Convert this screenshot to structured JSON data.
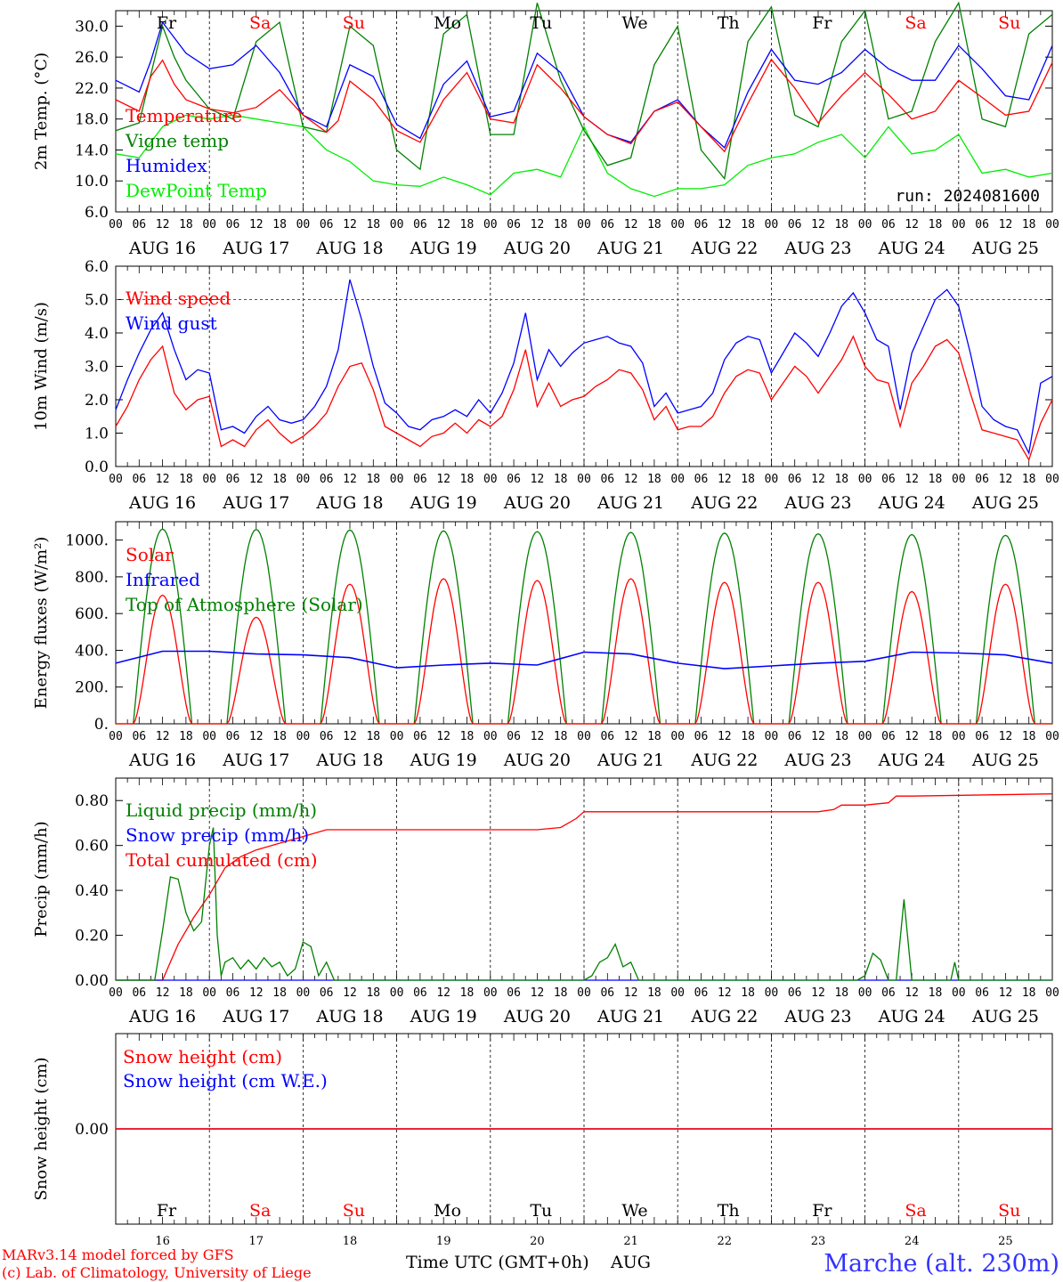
{
  "footer": {
    "model": "MARv3.14 model forced by GFS",
    "copyright": "(c) Lab. of Climatology, University of Liege",
    "xlabel": "Time UTC (GMT+0h)",
    "month": "AUG",
    "station": "Marche (alt. 230m)"
  },
  "run_label": "run: 2024081600",
  "colors": {
    "temperature": "#ff0000",
    "vigne": "#008000",
    "humidex": "#0000ff",
    "dewpoint": "#00ee00",
    "weekend": "#ff0000",
    "weekday": "#000000",
    "station": "#3333ff",
    "snow_we": "#7030a0"
  },
  "time_axis": {
    "hour_ticks": [
      "00",
      "06",
      "12",
      "18"
    ],
    "date_labels": [
      "AUG 16",
      "AUG 17",
      "AUG 18",
      "AUG 19",
      "AUG 20",
      "AUG 21",
      "AUG 22",
      "AUG 23",
      "AUG 24",
      "AUG 25"
    ],
    "day_abbr": [
      "Fr",
      "Sa",
      "Su",
      "Mo",
      "Tu",
      "We",
      "Th",
      "Fr",
      "Sa",
      "Su"
    ],
    "weekend": [
      false,
      true,
      true,
      false,
      false,
      false,
      false,
      false,
      true,
      true
    ],
    "day_numbers": [
      "16",
      "17",
      "18",
      "19",
      "20",
      "21",
      "22",
      "23",
      "24",
      "25"
    ]
  },
  "chart_data": [
    {
      "type": "line",
      "ylabel": "2m Temp. (°C)",
      "ylim": [
        6,
        32
      ],
      "yticks": [
        "6.0",
        "10.0",
        "14.0",
        "18.0",
        "22.0",
        "26.0",
        "30.0"
      ],
      "x_unit": "hours since AUG 16 00 UTC",
      "series": [
        {
          "name": "Temperature",
          "color": "#ff0000",
          "x": [
            0,
            6,
            9,
            12,
            15,
            18,
            24,
            30,
            36,
            42,
            48,
            54,
            57,
            60,
            66,
            72,
            78,
            84,
            90,
            96,
            102,
            108,
            114,
            120,
            126,
            132,
            138,
            144,
            150,
            156,
            162,
            168,
            174,
            180,
            186,
            192,
            198,
            204,
            210,
            216,
            222,
            228,
            234,
            240
          ],
          "y": [
            20.5,
            19.0,
            23.5,
            25.6,
            22.5,
            20.5,
            19.3,
            18.8,
            19.5,
            21.8,
            18.5,
            16.3,
            17.8,
            22.9,
            20.5,
            16.5,
            15.0,
            20.5,
            24.0,
            18.0,
            17.5,
            25.0,
            22.0,
            18.3,
            16.0,
            14.8,
            19.0,
            20.2,
            17.0,
            13.8,
            20.0,
            25.7,
            22.0,
            17.5,
            21.0,
            24.0,
            21.2,
            18.0,
            19.0,
            23.0,
            20.8,
            18.5,
            19.0,
            25.3
          ]
        },
        {
          "name": "Vigne temp",
          "color": "#008000",
          "x": [
            0,
            6,
            12,
            15,
            18,
            24,
            30,
            36,
            42,
            48,
            54,
            60,
            66,
            72,
            78,
            84,
            90,
            96,
            102,
            108,
            114,
            120,
            126,
            132,
            138,
            144,
            150,
            156,
            162,
            168,
            174,
            180,
            186,
            192,
            198,
            204,
            210,
            216,
            222,
            228,
            234,
            240
          ],
          "y": [
            16.5,
            17.5,
            30.0,
            26.0,
            23.0,
            19.3,
            18.0,
            28.0,
            30.5,
            17.0,
            16.3,
            30.0,
            27.5,
            14.0,
            11.5,
            29.0,
            31.5,
            16.0,
            16.0,
            33.0,
            23.0,
            16.5,
            12.0,
            13.0,
            25.0,
            30.0,
            14.0,
            10.3,
            28.0,
            32.5,
            18.5,
            17.0,
            28.0,
            32.0,
            18.0,
            19.0,
            28.0,
            33.0,
            18.0,
            17.0,
            29.0,
            31.5
          ]
        },
        {
          "name": "Humidex",
          "color": "#0000ff",
          "x": [
            0,
            6,
            9,
            12,
            18,
            24,
            30,
            36,
            42,
            48,
            54,
            60,
            66,
            72,
            78,
            84,
            90,
            96,
            102,
            108,
            114,
            120,
            126,
            132,
            138,
            144,
            150,
            156,
            162,
            168,
            174,
            180,
            186,
            192,
            198,
            204,
            210,
            216,
            222,
            228,
            234,
            240
          ],
          "y": [
            23.0,
            21.5,
            25.5,
            30.5,
            26.5,
            24.5,
            25.0,
            27.5,
            24.0,
            18.5,
            17.0,
            25.0,
            23.5,
            17.3,
            15.5,
            22.5,
            25.5,
            18.3,
            19.0,
            26.5,
            24.0,
            18.3,
            16.0,
            15.0,
            19.0,
            20.5,
            17.0,
            14.3,
            21.5,
            27.0,
            23.0,
            22.5,
            24.0,
            27.0,
            24.5,
            23.0,
            23.0,
            27.5,
            24.5,
            21.0,
            20.5,
            27.5
          ]
        },
        {
          "name": "DewPoint Temp",
          "color": "#00ee00",
          "x": [
            0,
            6,
            12,
            18,
            24,
            30,
            36,
            42,
            48,
            54,
            60,
            66,
            72,
            78,
            84,
            90,
            96,
            102,
            108,
            114,
            120,
            126,
            132,
            138,
            144,
            150,
            156,
            162,
            168,
            174,
            180,
            186,
            192,
            198,
            204,
            210,
            216,
            222,
            228,
            234,
            240
          ],
          "y": [
            13.5,
            13.0,
            17.0,
            18.5,
            18.0,
            18.5,
            18.0,
            17.5,
            17.0,
            14.0,
            12.5,
            10.0,
            9.5,
            9.3,
            10.5,
            9.5,
            8.2,
            11.0,
            11.5,
            10.5,
            17.0,
            11.0,
            9.0,
            8.0,
            9.0,
            9.0,
            9.5,
            12.0,
            13.0,
            13.5,
            15.0,
            16.0,
            13.0,
            17.0,
            13.5,
            14.0,
            16.0,
            11.0,
            11.5,
            10.5,
            11.0
          ]
        }
      ],
      "reference_line": 0
    },
    {
      "type": "line",
      "ylabel": "10m Wind (m/s)",
      "ylim": [
        0,
        6
      ],
      "yticks": [
        "0.0",
        "1.0",
        "2.0",
        "3.0",
        "4.0",
        "5.0",
        "6.0"
      ],
      "x_unit": "hours since AUG 16 00 UTC",
      "series": [
        {
          "name": "Wind speed",
          "color": "#ff0000",
          "x": [
            0,
            3,
            6,
            9,
            12,
            15,
            18,
            21,
            24,
            27,
            30,
            33,
            36,
            39,
            42,
            45,
            48,
            51,
            54,
            57,
            60,
            63,
            66,
            69,
            72,
            75,
            78,
            81,
            84,
            87,
            90,
            93,
            96,
            99,
            102,
            105,
            108,
            111,
            114,
            117,
            120,
            123,
            126,
            129,
            132,
            135,
            138,
            141,
            144,
            147,
            150,
            153,
            156,
            159,
            162,
            165,
            168,
            171,
            174,
            177,
            180,
            183,
            186,
            189,
            192,
            195,
            198,
            201,
            204,
            207,
            210,
            213,
            216,
            219,
            222,
            225,
            228,
            231,
            234,
            237,
            240
          ],
          "y": [
            1.2,
            1.8,
            2.6,
            3.2,
            3.6,
            2.2,
            1.7,
            2.0,
            2.1,
            0.6,
            0.8,
            0.6,
            1.1,
            1.4,
            1.0,
            0.7,
            0.9,
            1.2,
            1.6,
            2.4,
            3.0,
            3.1,
            2.3,
            1.2,
            1.0,
            0.8,
            0.6,
            0.9,
            1.0,
            1.3,
            1.0,
            1.4,
            1.2,
            1.5,
            2.3,
            3.5,
            1.8,
            2.5,
            1.8,
            2.0,
            2.1,
            2.4,
            2.6,
            2.9,
            2.8,
            2.3,
            1.4,
            1.8,
            1.1,
            1.2,
            1.2,
            1.5,
            2.2,
            2.7,
            2.9,
            2.8,
            2.0,
            2.5,
            3.0,
            2.7,
            2.2,
            2.7,
            3.2,
            3.9,
            3.0,
            2.6,
            2.5,
            1.2,
            2.5,
            3.0,
            3.6,
            3.8,
            3.4,
            2.2,
            1.1,
            1.0,
            0.9,
            0.8,
            0.2,
            1.3,
            2.0
          ]
        },
        {
          "name": "Wind gust",
          "color": "#0000ff",
          "x": [
            0,
            3,
            6,
            9,
            12,
            15,
            18,
            21,
            24,
            27,
            30,
            33,
            36,
            39,
            42,
            45,
            48,
            51,
            54,
            57,
            60,
            63,
            66,
            69,
            72,
            75,
            78,
            81,
            84,
            87,
            90,
            93,
            96,
            99,
            102,
            105,
            108,
            111,
            114,
            117,
            120,
            123,
            126,
            129,
            132,
            135,
            138,
            141,
            144,
            147,
            150,
            153,
            156,
            159,
            162,
            165,
            168,
            171,
            174,
            177,
            180,
            183,
            186,
            189,
            192,
            195,
            198,
            201,
            204,
            207,
            210,
            213,
            216,
            219,
            222,
            225,
            228,
            231,
            234,
            237,
            240
          ],
          "y": [
            1.7,
            2.6,
            3.4,
            4.1,
            4.6,
            3.5,
            2.6,
            2.9,
            2.8,
            1.1,
            1.2,
            1.0,
            1.5,
            1.8,
            1.4,
            1.3,
            1.4,
            1.8,
            2.4,
            3.5,
            5.6,
            4.4,
            3.0,
            1.9,
            1.6,
            1.2,
            1.1,
            1.4,
            1.5,
            1.7,
            1.5,
            2.0,
            1.6,
            2.2,
            3.1,
            4.6,
            2.6,
            3.5,
            3.0,
            3.4,
            3.7,
            3.8,
            3.9,
            3.7,
            3.6,
            3.1,
            1.8,
            2.2,
            1.6,
            1.7,
            1.8,
            2.2,
            3.2,
            3.7,
            3.9,
            3.8,
            2.8,
            3.4,
            4.0,
            3.7,
            3.3,
            4.0,
            4.8,
            5.2,
            4.6,
            3.8,
            3.6,
            1.7,
            3.4,
            4.2,
            5.0,
            5.3,
            4.8,
            3.4,
            1.8,
            1.4,
            1.2,
            1.1,
            0.4,
            2.5,
            2.7
          ]
        }
      ],
      "reference_line": 5.0
    },
    {
      "type": "line",
      "ylabel": "Energy fluxes (W/m²)",
      "ylim": [
        0,
        1100
      ],
      "yticks": [
        "0.",
        "200.",
        "400.",
        "600.",
        "800.",
        "1000."
      ],
      "x_unit": "hours since AUG 16 00 UTC",
      "diurnal": {
        "toa_peak": [
          1060,
          1058,
          1055,
          1050,
          1046,
          1042,
          1038,
          1034,
          1030,
          1026
        ],
        "solar_peak": [
          700,
          580,
          760,
          790,
          780,
          790,
          770,
          770,
          720,
          760
        ],
        "sunrise_hour": 4.5,
        "sunset_hour": 19.5
      },
      "series": [
        {
          "name": "Solar",
          "color": "#ff0000"
        },
        {
          "name": "Infrared",
          "color": "#0000ff",
          "x": [
            0,
            12,
            24,
            36,
            48,
            60,
            72,
            84,
            96,
            108,
            120,
            132,
            144,
            156,
            168,
            180,
            192,
            204,
            216,
            228,
            240
          ],
          "y": [
            330,
            395,
            395,
            380,
            375,
            360,
            305,
            320,
            330,
            320,
            390,
            380,
            330,
            300,
            315,
            330,
            340,
            390,
            385,
            375,
            330
          ]
        },
        {
          "name": "Top of Atmosphere (Solar)",
          "color": "#008000"
        }
      ]
    },
    {
      "type": "line",
      "ylabel": "Precip (mm/h)",
      "ylim": [
        0,
        0.9
      ],
      "yticks": [
        "0.00",
        "0.20",
        "0.40",
        "0.60",
        "0.80"
      ],
      "x_unit": "hours since AUG 16 00 UTC",
      "series": [
        {
          "name": "Liquid precip (mm/h)",
          "color": "#008000",
          "x": [
            0,
            10,
            12,
            14,
            16,
            18,
            20,
            22,
            24,
            25,
            26,
            27,
            28,
            30,
            32,
            34,
            36,
            38,
            40,
            42,
            44,
            46,
            48,
            50,
            52,
            54,
            56,
            60,
            120,
            122,
            124,
            126,
            128,
            130,
            132,
            134,
            190,
            192,
            194,
            196,
            198,
            200,
            202,
            204,
            214,
            215,
            216,
            240
          ],
          "y": [
            0,
            0,
            0.22,
            0.46,
            0.45,
            0.3,
            0.22,
            0.26,
            0.6,
            0.68,
            0.2,
            0.02,
            0.08,
            0.1,
            0.05,
            0.09,
            0.05,
            0.1,
            0.06,
            0.08,
            0.02,
            0.05,
            0.17,
            0.15,
            0.02,
            0.08,
            0.0,
            0.0,
            0.0,
            0.02,
            0.08,
            0.1,
            0.16,
            0.06,
            0.08,
            0.0,
            0.0,
            0.02,
            0.12,
            0.09,
            0.0,
            0.0,
            0.36,
            0.0,
            0.0,
            0.08,
            0.0,
            0.0
          ]
        },
        {
          "name": "Snow precip (mm/h)",
          "color": "#0000ff",
          "x": [
            0,
            240
          ],
          "y": [
            0,
            0
          ]
        },
        {
          "name": "Total cumulated (cm)",
          "color": "#ff0000",
          "x": [
            0,
            12,
            16,
            20,
            24,
            28,
            32,
            36,
            42,
            48,
            54,
            60,
            66,
            72,
            108,
            114,
            118,
            120,
            126,
            180,
            184,
            186,
            192,
            198,
            200,
            204,
            240
          ],
          "y": [
            0,
            0,
            0.16,
            0.28,
            0.38,
            0.5,
            0.55,
            0.58,
            0.61,
            0.64,
            0.67,
            0.67,
            0.67,
            0.67,
            0.67,
            0.68,
            0.72,
            0.75,
            0.75,
            0.75,
            0.76,
            0.78,
            0.78,
            0.79,
            0.82,
            0.82,
            0.83
          ]
        }
      ]
    },
    {
      "type": "line",
      "ylabel": "Snow height (cm)",
      "ylim": [
        -1,
        1
      ],
      "yticks": [
        "0.00"
      ],
      "x_unit": "hours since AUG 16 00 UTC",
      "series": [
        {
          "name": "Snow height (cm)",
          "color": "#ff0000",
          "x": [
            0,
            240
          ],
          "y": [
            0,
            0
          ]
        },
        {
          "name": "Snow height (cm W.E.)",
          "color": "#0000ff",
          "x": [
            0,
            240
          ],
          "y": [
            0,
            0
          ]
        }
      ]
    }
  ]
}
